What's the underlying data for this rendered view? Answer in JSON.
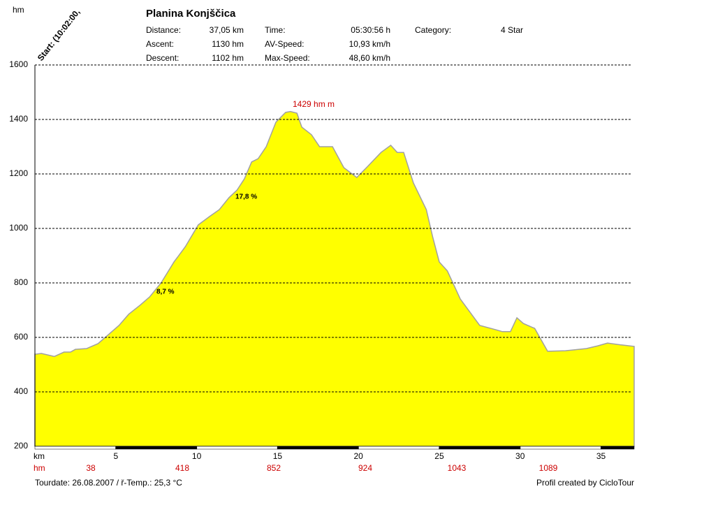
{
  "chart_data": {
    "type": "area",
    "title": "Planina Konjščica",
    "y_axis_label": "hm",
    "x_axis_label": "km",
    "start_label": "Start: (10:02:00,",
    "stats": [
      {
        "label": "Distance:",
        "value": "37,05 km"
      },
      {
        "label": "Time:",
        "value": "05:30:56 h"
      },
      {
        "label": "Category:",
        "value": "4 Star"
      },
      {
        "label": "Ascent:",
        "value": "1130 hm"
      },
      {
        "label": "AV-Speed:",
        "value": "10,93 km/h"
      },
      {
        "label": "Descent:",
        "value": "1102 hm"
      },
      {
        "label": "Max-Speed:",
        "value": "48,60 km/h"
      }
    ],
    "ascent_row": {
      "label": "hm",
      "values": [
        38,
        418,
        852,
        924,
        1043,
        1089
      ]
    },
    "annotations": [
      "1429 hm m",
      "17,8 %",
      "8,7 %"
    ],
    "footer_left": "Tourdate: 26.08.2007  /  ř-Temp.: 25,3 °C",
    "footer_right": "Profil created by CicloTour",
    "x": [
      0,
      0.4,
      1.2,
      1.8,
      2.2,
      2.5,
      3.2,
      3.9,
      4.5,
      5.2,
      5.8,
      6.5,
      7.1,
      7.8,
      8.6,
      9.3,
      10.1,
      10.8,
      11.4,
      12.0,
      12.5,
      12.95,
      13.4,
      13.8,
      14.3,
      14.9,
      15.5,
      15.8,
      16.2,
      16.5,
      17.1,
      17.6,
      18.4,
      19.1,
      19.9,
      20.5,
      21.4,
      22.0,
      22.4,
      22.8,
      23.4,
      24.2,
      24.6,
      25.0,
      25.5,
      26.3,
      27.5,
      28.5,
      28.9,
      29.4,
      29.8,
      30.2,
      30.9,
      31.7,
      32.8,
      34.1,
      34.8,
      35.4,
      36.3,
      37.05
    ],
    "y": [
      538,
      541,
      530,
      546,
      546,
      556,
      559,
      577,
      608,
      644,
      685,
      718,
      749,
      800,
      877,
      933,
      1013,
      1044,
      1069,
      1113,
      1141,
      1182,
      1244,
      1256,
      1300,
      1390,
      1426,
      1429,
      1423,
      1372,
      1344,
      1300,
      1300,
      1223,
      1187,
      1223,
      1279,
      1305,
      1279,
      1279,
      1167,
      1069,
      967,
      877,
      844,
      741,
      644,
      628,
      621,
      621,
      672,
      651,
      633,
      549,
      551,
      559,
      569,
      579,
      572,
      567
    ],
    "color": "#ffff00",
    "line_color": "#a0a0a0",
    "xlim": [
      0,
      37.05
    ],
    "xticks": [
      5,
      10,
      15,
      20,
      25,
      30,
      35
    ],
    "ylim": [
      200,
      1600
    ],
    "yticks": [
      200,
      400,
      600,
      800,
      1000,
      1200,
      1400,
      1600
    ],
    "grid": true
  }
}
